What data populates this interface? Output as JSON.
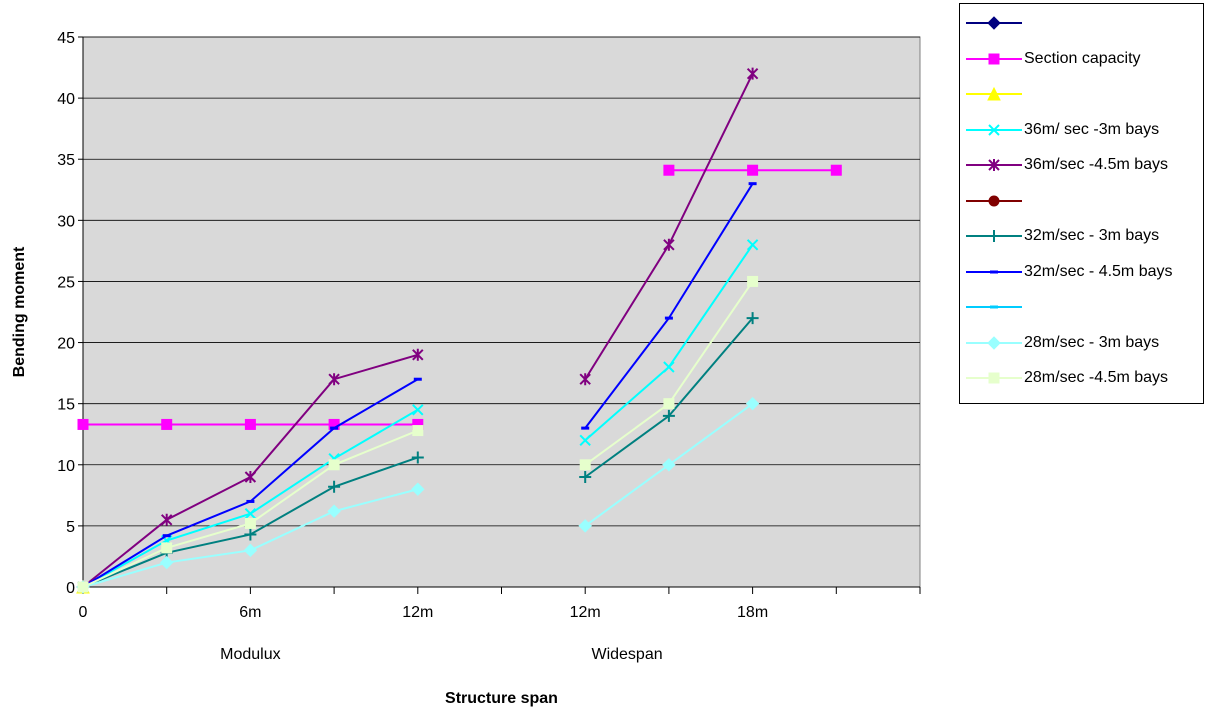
{
  "chart_data": {
    "type": "line",
    "xlabel": "Structure span",
    "ylabel": "Bending moment",
    "ylim": [
      0,
      45
    ],
    "yticks": [
      "0",
      "5",
      "10",
      "15",
      "20",
      "25",
      "30",
      "35",
      "40",
      "45"
    ],
    "x_tick_labels": [
      "0",
      "6m",
      "12m",
      "12m",
      "18m"
    ],
    "group_labels": [
      "Modulux",
      "Widespan"
    ],
    "grid": "horizontal",
    "plot_background": "#d9d9d9",
    "legend_position": "top-right",
    "categories": [
      "0",
      "",
      "6m",
      "",
      "12m",
      "",
      "12m",
      "",
      "18m",
      ""
    ],
    "series": [
      {
        "name": "",
        "marker": "diamond",
        "color": "#000080",
        "values": [
          0,
          null,
          null,
          null,
          null,
          null,
          null,
          null,
          null,
          null
        ]
      },
      {
        "name": "Section capacity",
        "marker": "square",
        "color": "#ff00ff",
        "values": [
          13.3,
          13.3,
          13.3,
          13.3,
          13.3,
          null,
          null,
          34.1,
          34.1,
          34.1
        ]
      },
      {
        "name": "",
        "marker": "triangle",
        "color": "#ffff00",
        "values": [
          0,
          null,
          null,
          null,
          null,
          null,
          null,
          null,
          null,
          null
        ]
      },
      {
        "name": "36m/ sec -3m bays",
        "marker": "x",
        "color": "#00ffff",
        "values": [
          0,
          3.8,
          6.0,
          10.5,
          14.5,
          null,
          12.0,
          18.0,
          28.0,
          null
        ]
      },
      {
        "name": "36m/sec -4.5m bays",
        "marker": "star",
        "color": "#800080",
        "values": [
          0,
          5.5,
          9.0,
          17.0,
          19.0,
          null,
          17.0,
          28.0,
          42.0,
          null
        ]
      },
      {
        "name": "",
        "marker": "circle",
        "color": "#800000",
        "values": [
          0,
          null,
          null,
          null,
          null,
          null,
          null,
          null,
          null,
          null
        ]
      },
      {
        "name": "32m/sec - 3m bays",
        "marker": "plus",
        "color": "#008080",
        "values": [
          0,
          2.8,
          4.3,
          8.2,
          10.6,
          null,
          9.0,
          14.0,
          22.0,
          null
        ]
      },
      {
        "name": "32m/sec - 4.5m bays",
        "marker": "dash",
        "color": "#0000ff",
        "values": [
          0,
          4.2,
          7.0,
          13.0,
          17.0,
          null,
          13.0,
          22.0,
          33.0,
          null
        ]
      },
      {
        "name": "",
        "marker": "dash",
        "color": "#00ccff",
        "values": [
          0,
          null,
          null,
          null,
          null,
          null,
          null,
          null,
          null,
          null
        ]
      },
      {
        "name": "28m/sec - 3m bays",
        "marker": "diamond",
        "color": "#99ffff",
        "values": [
          0,
          2.0,
          3.0,
          6.2,
          8.0,
          null,
          5.0,
          10.0,
          15.0,
          null
        ]
      },
      {
        "name": "28m/sec -4.5m bays",
        "marker": "square",
        "color": "#e6ffcc",
        "values": [
          0,
          3.2,
          5.2,
          10.0,
          12.8,
          null,
          10.0,
          15.0,
          25.0,
          null
        ]
      }
    ]
  }
}
